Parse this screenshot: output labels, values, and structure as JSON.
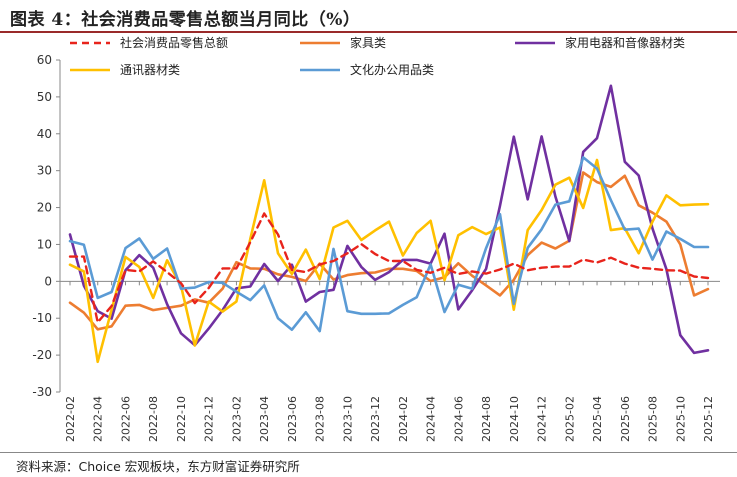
{
  "title": "图表 4：社会消费品零售总额当月同比（%）",
  "source": "资料来源：Choice 宏观板块，东方财富证券研究所",
  "chart_data": {
    "type": "line",
    "title": "图表 4：社会消费品零售总额当月同比（%）",
    "xlabel": "",
    "ylabel": "",
    "ylim": [
      -30,
      60
    ],
    "y_ticks": [
      -30,
      -20,
      -10,
      0,
      10,
      20,
      30,
      40,
      50,
      60
    ],
    "grid": false,
    "legend": "top",
    "x_tick_labels": [
      "2022-02",
      "2022-04",
      "2022-06",
      "2022-08",
      "2022-10",
      "2022-12",
      "2023-02",
      "2023-04",
      "2023-06",
      "2023-08",
      "2023-10",
      "2023-12",
      "2024-02",
      "2024-04",
      "2024-06",
      "2024-08",
      "2024-10",
      "2024-12",
      "2025-02",
      "2025-04",
      "2025-06",
      "2025-08",
      "2025-10",
      "2025-12"
    ],
    "categories": [
      "2022-02",
      "2022-03",
      "2022-04",
      "2022-05",
      "2022-06",
      "2022-07",
      "2022-08",
      "2022-09",
      "2022-10",
      "2022-11",
      "2022-12",
      "2023-01",
      "2023-02",
      "2023-03",
      "2023-04",
      "2023-05",
      "2023-06",
      "2023-07",
      "2023-08",
      "2023-09",
      "2023-10",
      "2023-11",
      "2023-12",
      "2024-01",
      "2024-02",
      "2024-03",
      "2024-04",
      "2024-05",
      "2024-06",
      "2024-07",
      "2024-08",
      "2024-09",
      "2024-10",
      "2024-11",
      "2024-12",
      "2025-01",
      "2025-02",
      "2025-03",
      "2025-04",
      "2025-05",
      "2025-06",
      "2025-07",
      "2025-08",
      "2025-09",
      "2025-10",
      "2025-11",
      "2025-12"
    ],
    "series": [
      {
        "name": "社会消费品零售总额",
        "color": "#e8241c",
        "dash": true,
        "values": [
          6.7,
          6.7,
          -11.1,
          -6.7,
          3.1,
          2.7,
          5.4,
          2.5,
          -0.5,
          -5.9,
          -1.8,
          3.5,
          3.5,
          10.6,
          18.4,
          12.7,
          3.1,
          2.5,
          4.6,
          5.5,
          7.6,
          10.1,
          7.4,
          5.5,
          5.5,
          3.1,
          2.3,
          3.7,
          2.0,
          2.7,
          2.1,
          3.2,
          4.8,
          3.0,
          3.7,
          4.0,
          4.0,
          5.9,
          5.1,
          6.4,
          4.8,
          3.7,
          3.4,
          3.0,
          2.9,
          1.3,
          0.9
        ]
      },
      {
        "name": "家具类",
        "color": "#ed7d31",
        "dash": false,
        "values": [
          -5.8,
          -8.5,
          -13.0,
          -12.2,
          -6.6,
          -6.4,
          -7.8,
          -7.2,
          -6.6,
          -4.9,
          -5.8,
          -2.0,
          5.2,
          3.5,
          3.4,
          1.9,
          1.2,
          0.1,
          4.8,
          0.5,
          1.7,
          2.2,
          2.4,
          3.4,
          3.4,
          2.8,
          0.1,
          1.1,
          4.9,
          1.5,
          -1.1,
          -3.8,
          0.4,
          7.1,
          10.5,
          8.9,
          11.0,
          29.5,
          26.9,
          25.6,
          28.6,
          20.6,
          18.6,
          16.2,
          10.0,
          -3.8,
          -2.1
        ]
      },
      {
        "name": "家用电器和音像器材类",
        "color": "#7030a0",
        "dash": false,
        "values": [
          12.7,
          -1.2,
          -8.1,
          -10.1,
          3.0,
          7.1,
          3.7,
          -6.2,
          -14.1,
          -17.3,
          -12.8,
          -7.8,
          -1.9,
          -1.4,
          4.7,
          0.1,
          4.5,
          -5.5,
          -2.9,
          -2.3,
          9.6,
          3.9,
          0.4,
          2.5,
          5.8,
          5.8,
          4.8,
          12.9,
          -7.6,
          -2.4,
          3.4,
          20.5,
          39.2,
          22.2,
          39.3,
          23.0,
          10.9,
          35.1,
          38.8,
          53.0,
          32.4,
          28.7,
          14.3,
          3.3,
          -14.6,
          -19.4,
          -18.7
        ]
      },
      {
        "name": "通讯器材类",
        "color": "#ffc000",
        "dash": false,
        "values": [
          4.5,
          2.7,
          -21.8,
          -7.7,
          6.6,
          3.9,
          -4.5,
          5.7,
          -1.2,
          -17.4,
          -5.5,
          -8.2,
          -5.5,
          11.5,
          27.4,
          7.6,
          2.0,
          8.6,
          0.6,
          14.6,
          16.4,
          11.2,
          13.8,
          16.2,
          7.0,
          13.1,
          16.4,
          0.3,
          12.5,
          14.7,
          12.8,
          14.6,
          -7.7,
          13.9,
          19.3,
          26.2,
          28.1,
          19.9,
          32.9,
          13.9,
          14.4,
          7.6,
          16.2,
          23.3,
          20.6,
          20.8,
          20.9
        ]
      },
      {
        "name": "文化办公用品类",
        "color": "#5b9bd5",
        "dash": false,
        "values": [
          10.9,
          9.9,
          -4.5,
          -2.9,
          9.0,
          11.6,
          6.1,
          8.9,
          -2.0,
          -1.7,
          -0.2,
          -0.4,
          -2.8,
          -5.1,
          -1.1,
          -10.0,
          -13.1,
          -8.4,
          -13.5,
          8.8,
          -8.1,
          -8.8,
          -8.8,
          -8.7,
          -6.4,
          -4.3,
          4.6,
          -8.3,
          -0.9,
          -2.0,
          9.0,
          18.2,
          -6.1,
          9.1,
          14.1,
          20.8,
          21.7,
          33.6,
          30.6,
          22.0,
          14.0,
          14.3,
          5.9,
          13.5,
          11.5,
          9.3,
          9.3
        ]
      }
    ]
  }
}
